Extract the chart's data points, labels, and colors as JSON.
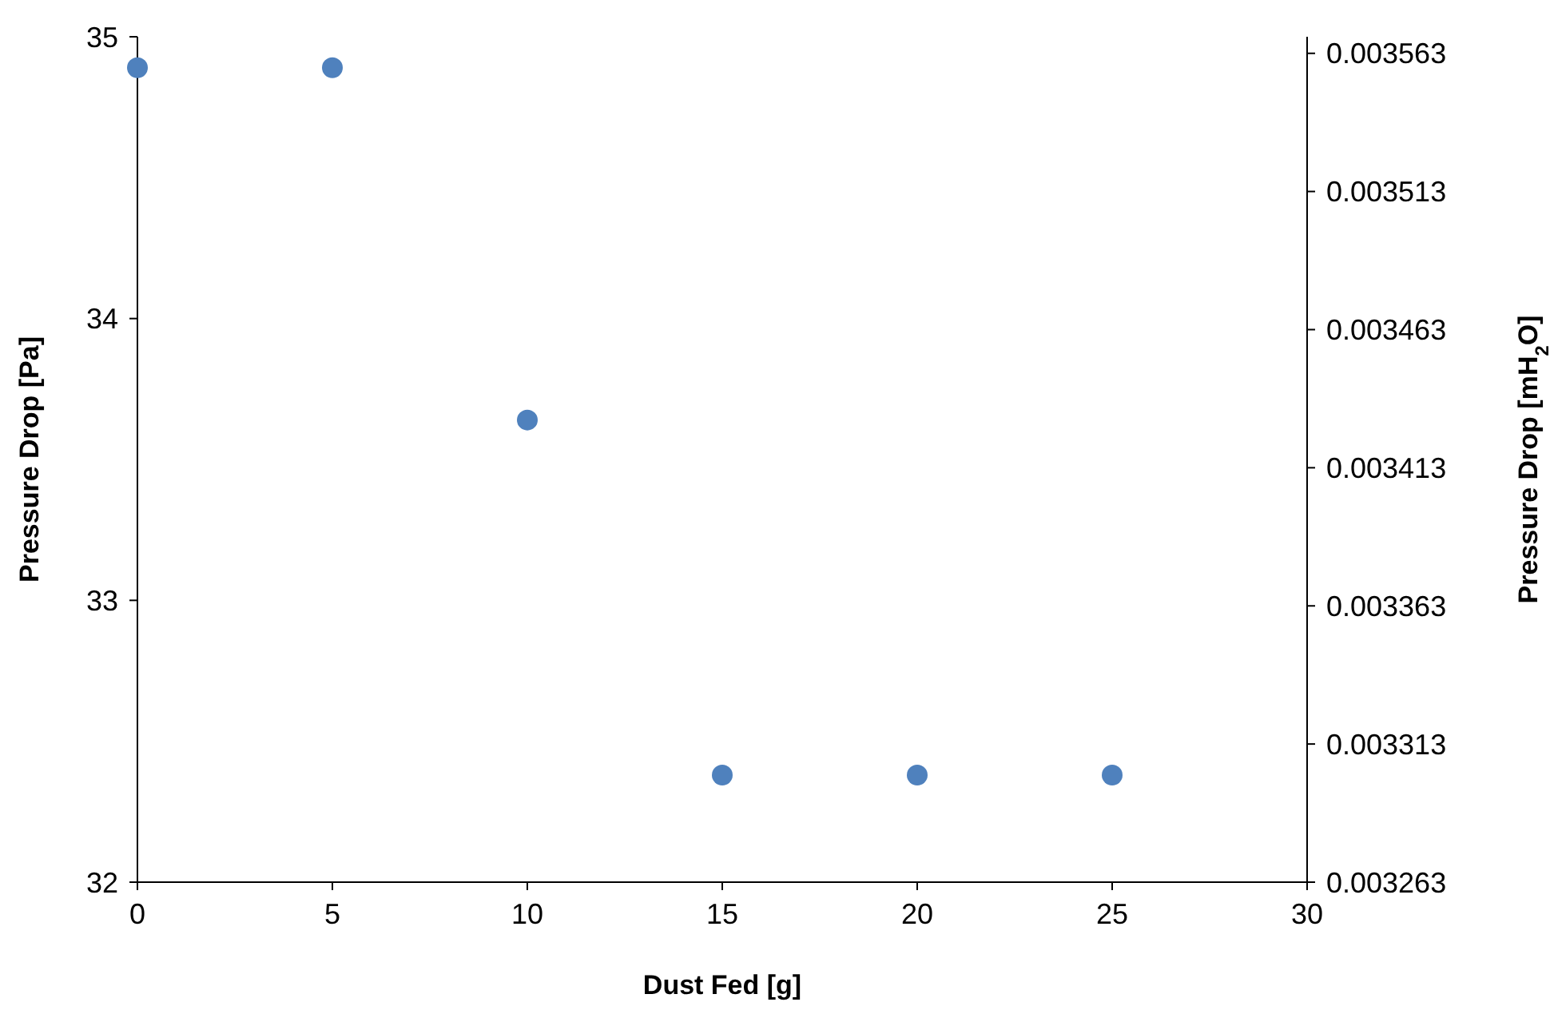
{
  "chart_data": {
    "type": "scatter",
    "xlabel": "Dust Fed [g]",
    "ylabel": "Pressure Drop [Pa]",
    "y2label": "Pressure Drop [mH$_{2}$O]",
    "x": [
      0,
      5,
      10,
      15,
      20,
      25
    ],
    "series": [
      {
        "color": "#4f81bd",
        "values": [
          34.89,
          34.89,
          33.64,
          32.38,
          32.38,
          32.38
        ]
      }
    ],
    "xlim": [
      0,
      30
    ],
    "xticks": [
      0,
      5,
      10,
      15,
      20,
      25,
      30
    ],
    "ylim": [
      32,
      35
    ],
    "yticks": [
      32,
      33,
      34,
      35
    ],
    "y2lim": [
      0.003263,
      0.003569
    ],
    "y2ticks": [
      0.003263,
      0.003313,
      0.003363,
      0.003413,
      0.003463,
      0.003513,
      0.003563
    ],
    "marker": "circle"
  }
}
